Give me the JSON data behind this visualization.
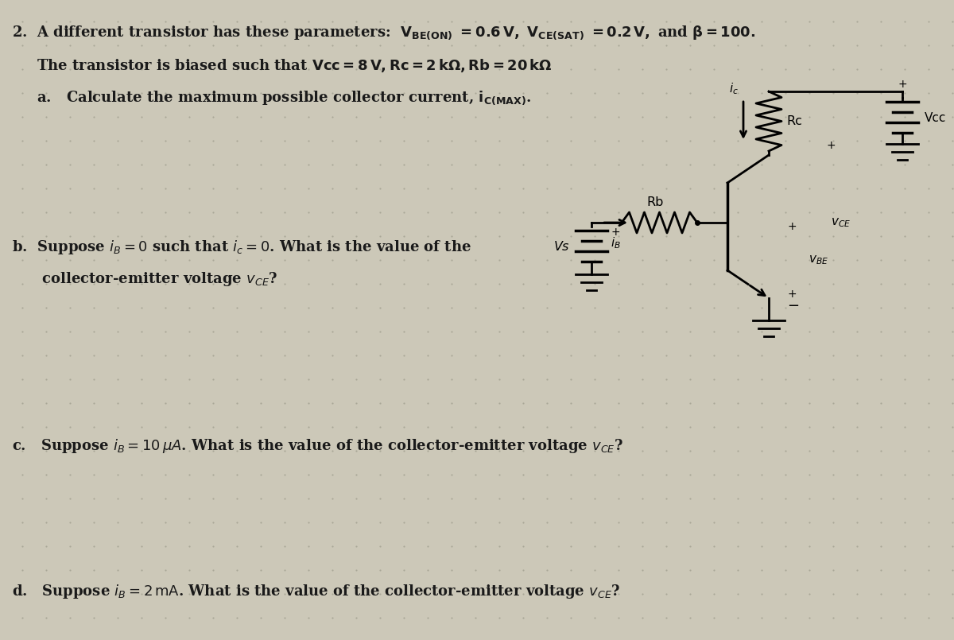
{
  "bg_color": "#ccc8b8",
  "text_color": "#1a1a1a",
  "fig_width": 12.0,
  "fig_height": 8.05,
  "line1": "2.  A different transistor has these parameters:  $\\mathbf{V_{BE(ON)}}$ $\\mathbf{= 0.6\\,V,}$ $\\mathbf{V_{CE(SAT)}}$ $\\mathbf{= 0.2\\,V,}$ and $\\mathbf{\\beta = 100.}$",
  "line2": "     The transistor is biased such that $\\mathbf{Vcc = 8\\,V, Rc = 2\\,k\\Omega, Rb = 20\\,k\\Omega}$",
  "line3": "     a.   Calculate the maximum possible collector current, $\\mathbf{i_{C(MAX)}}$.",
  "line4b1": "b.  Suppose $i_B = 0$ such that $i_c = 0$. What is the value of the",
  "line4b2": "      collector-emitter voltage $v_{CE}$?",
  "line5c": "c.   Suppose $i_B = 10\\,\\mu A$. What is the value of the collector-emitter voltage $v_{CE}$?",
  "line6d": "d.   Suppose $i_B = 2\\,\\mathrm{mA}$. What is the value of the collector-emitter voltage $v_{CE}$?"
}
